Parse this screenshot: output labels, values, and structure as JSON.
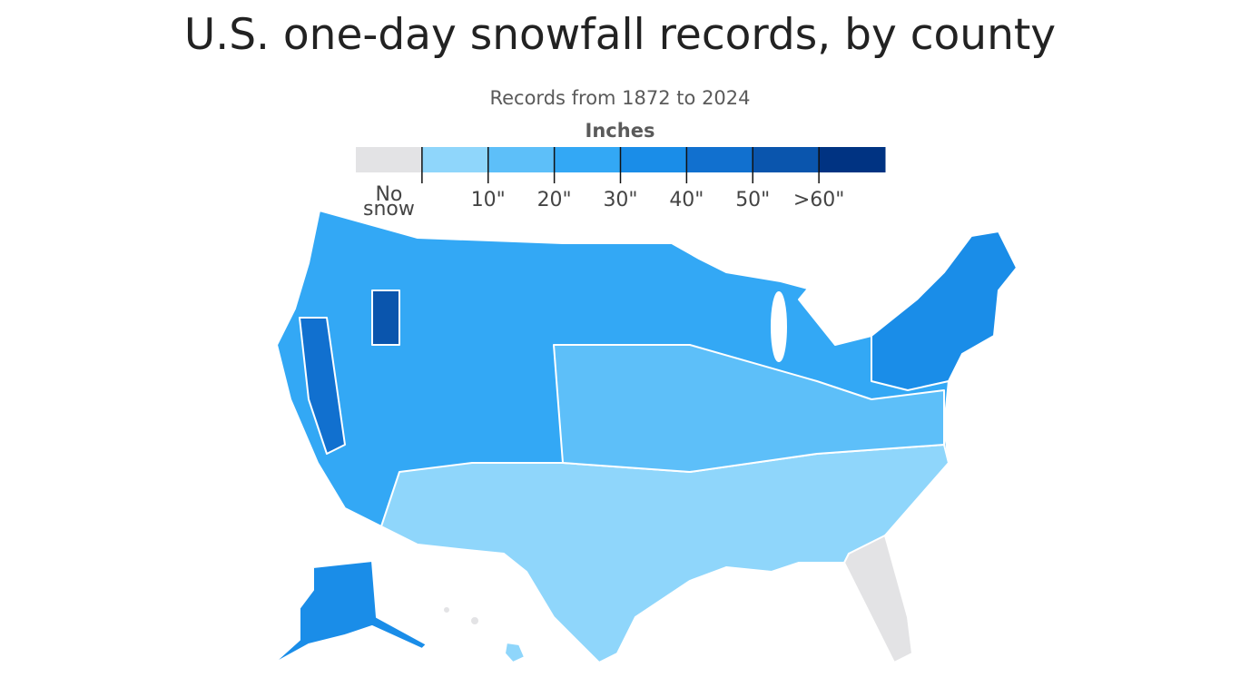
{
  "title": "U.S. one-day snowfall records, by county",
  "subtitle": "Records from 1872 to 2024",
  "legend": {
    "title": "Inches",
    "no_data_label": "No snow",
    "colors": [
      "#e3e3e5",
      "#8fd6fb",
      "#5dbff9",
      "#33a8f5",
      "#1a8de8",
      "#1170cf",
      "#0a55ad",
      "#003382"
    ],
    "breaks": [
      "10\"",
      "20\"",
      "30\"",
      "40\"",
      "50\"",
      ">60\""
    ]
  }
}
